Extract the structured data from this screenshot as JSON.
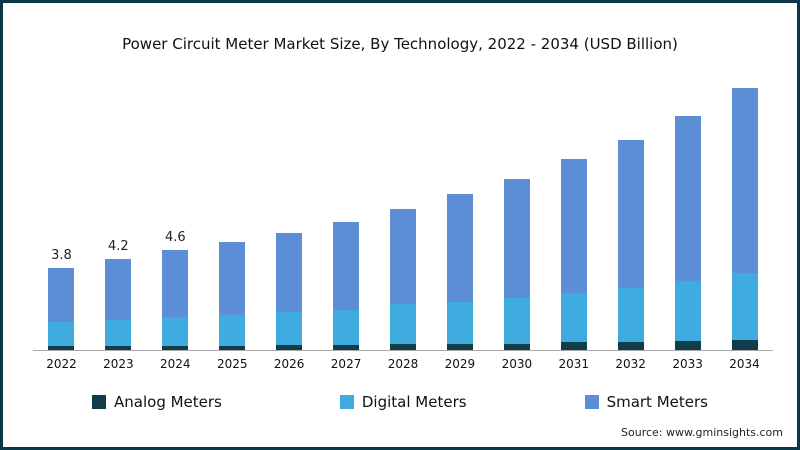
{
  "chart_data": {
    "type": "bar",
    "stacked": true,
    "title": "Power Circuit Meter Market Size, By Technology, 2022 - 2034 (USD Billion)",
    "xlabel": "",
    "ylabel": "",
    "ylim": [
      0,
      13
    ],
    "grid": false,
    "legend_position": "bottom",
    "categories": [
      "2022",
      "2023",
      "2024",
      "2025",
      "2026",
      "2027",
      "2028",
      "2029",
      "2030",
      "2031",
      "2032",
      "2033",
      "2034"
    ],
    "series": [
      {
        "name": "Analog Meters",
        "color": "#113c4a",
        "values": [
          0.2,
          0.2,
          0.2,
          0.2,
          0.25,
          0.25,
          0.3,
          0.3,
          0.3,
          0.35,
          0.35,
          0.4,
          0.45
        ]
      },
      {
        "name": "Digital Meters",
        "color": "#3fabdf",
        "values": [
          1.1,
          1.2,
          1.3,
          1.4,
          1.5,
          1.6,
          1.8,
          1.9,
          2.1,
          2.3,
          2.5,
          2.8,
          3.1
        ]
      },
      {
        "name": "Smart Meters",
        "color": "#5b8ed5",
        "values": [
          2.5,
          2.8,
          3.1,
          3.4,
          3.65,
          4.05,
          4.4,
          5.0,
          5.5,
          6.15,
          6.85,
          7.6,
          8.55
        ]
      }
    ],
    "totals": [
      3.8,
      4.2,
      4.6,
      5.0,
      5.4,
      5.9,
      6.5,
      7.2,
      7.9,
      8.8,
      9.7,
      10.8,
      12.1
    ],
    "bar_labels": [
      "3.8",
      "4.2",
      "4.6",
      "",
      "",
      "",
      "",
      "",
      "",
      "",
      "",
      "",
      ""
    ]
  },
  "source": "Source: www.gminsights.com",
  "colors": {
    "frame_border": "#0a3847",
    "axis_line": "#a9a9a9"
  }
}
